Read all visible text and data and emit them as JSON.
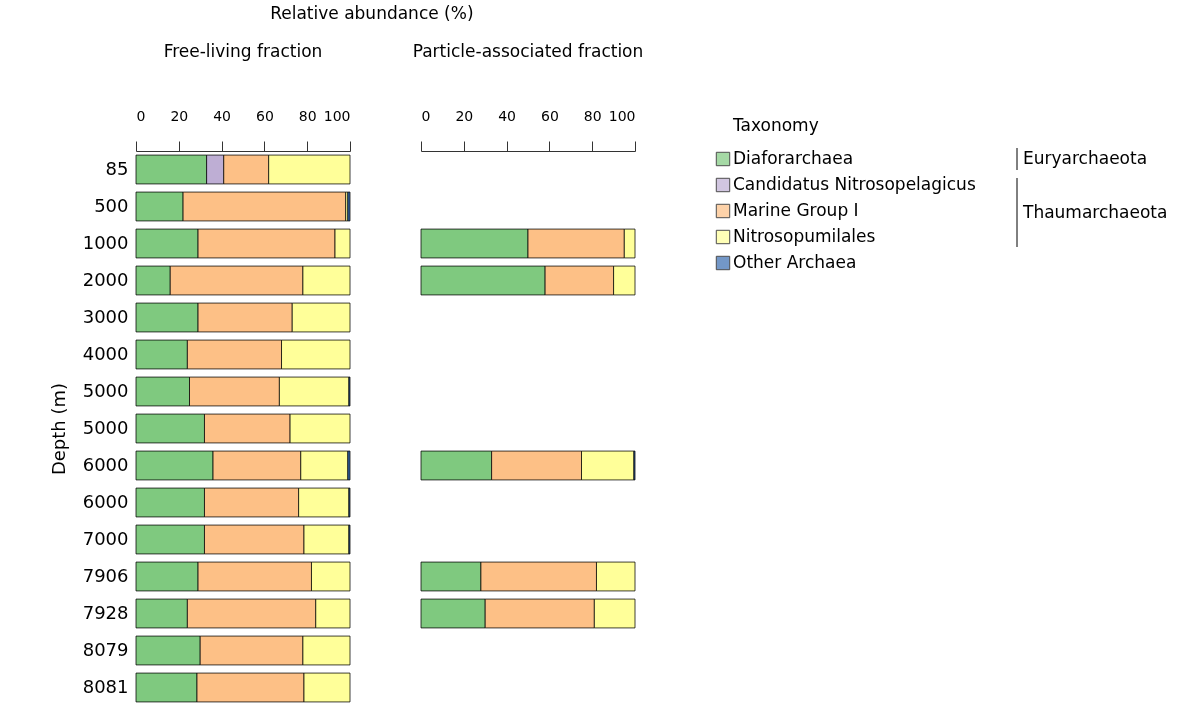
{
  "chart_data": [
    {
      "type": "bar",
      "orientation": "horizontal",
      "stacked": true,
      "title": "Free-living fraction",
      "xlabel": "Relative abundance (%)",
      "ylabel": "Depth (m)",
      "categories": [
        "85",
        "500",
        "1000",
        "2000",
        "3000",
        "4000",
        "5000",
        "5000",
        "6000",
        "6000",
        "7000",
        "7906",
        "7928",
        "8079",
        "8081"
      ],
      "xlim": [
        0,
        100
      ],
      "xticks": [
        0,
        20,
        40,
        60,
        80,
        100
      ],
      "grid": false,
      "legend": "right",
      "legend_title": "Taxonomy",
      "annotations": [
        "Euryarchaeota",
        "Thaumarchaeota"
      ],
      "series": [
        {
          "name": "Diaforarchaea",
          "color": "#7fc97f",
          "values": [
            33,
            22,
            29,
            16,
            29,
            24,
            25,
            32,
            36,
            32,
            32,
            29,
            24,
            30,
            28.5
          ]
        },
        {
          "name": "Candidatus Nitrosopelagicus",
          "color": "#beaed4",
          "values": [
            8,
            null,
            null,
            null,
            null,
            null,
            null,
            null,
            null,
            null,
            null,
            null,
            null,
            null,
            null
          ]
        },
        {
          "name": "Marine Group I",
          "color": "#fdc086",
          "values": [
            21,
            76,
            64,
            62,
            44,
            44,
            42,
            40,
            41,
            44,
            46.5,
            53,
            60,
            48,
            50
          ]
        },
        {
          "name": "Nitrosopumilales",
          "color": "#ffff99",
          "values": [
            38,
            1,
            7,
            22,
            27,
            32,
            32.5,
            28,
            22,
            23.5,
            21,
            18,
            16,
            22,
            21.5
          ]
        },
        {
          "name": "Other Archaea",
          "color": "#386cb0",
          "values": [
            null,
            1,
            null,
            null,
            null,
            null,
            0.5,
            null,
            1,
            0.5,
            0.5,
            null,
            null,
            null,
            null
          ]
        }
      ]
    },
    {
      "type": "bar",
      "orientation": "horizontal",
      "stacked": true,
      "title": "Particle-associated fraction",
      "tick_labels": "x",
      "categories": [
        "85",
        "500",
        "1000",
        "2000",
        "3000",
        "4000",
        "5000",
        "5000",
        "6000",
        "6000",
        "7000",
        "7906",
        "7928",
        "8079",
        "8081"
      ],
      "xlim": [
        0,
        100
      ],
      "xticks": [
        0,
        20,
        40,
        60,
        80,
        100
      ],
      "grid": false,
      "series": [
        {
          "color": "#7fc97f",
          "values": [
            null,
            null,
            50,
            58,
            null,
            null,
            null,
            null,
            33,
            null,
            null,
            28,
            30,
            null,
            null
          ]
        },
        {
          "color": "#fdc086",
          "values": [
            null,
            null,
            45,
            32,
            null,
            null,
            null,
            null,
            42,
            null,
            null,
            54,
            51,
            null,
            null
          ]
        },
        {
          "color": "#ffff99",
          "values": [
            null,
            null,
            5,
            10,
            null,
            null,
            null,
            null,
            24.5,
            null,
            null,
            18,
            19,
            null,
            null
          ]
        },
        {
          "color": "#386cb0",
          "values": [
            null,
            null,
            null,
            null,
            null,
            null,
            null,
            null,
            0.5,
            null,
            null,
            null,
            null,
            null,
            null
          ]
        }
      ]
    }
  ]
}
